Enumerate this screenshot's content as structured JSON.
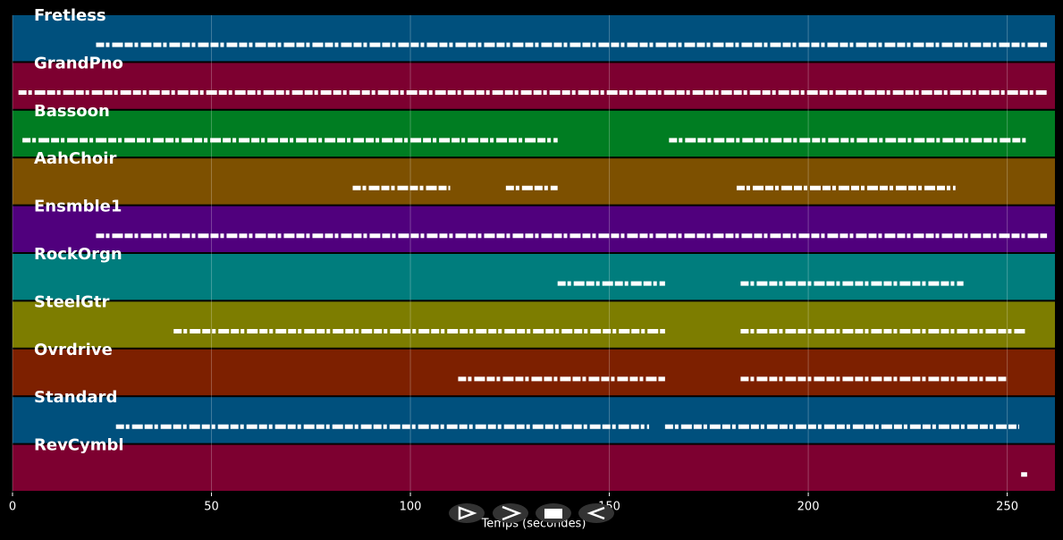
{
  "chart_data": {
    "type": "piano-roll",
    "xlabel": "Temps (secondes)",
    "xlim": [
      0,
      262
    ],
    "xticks": [
      0,
      50,
      100,
      150,
      200,
      250
    ],
    "grid": true,
    "tracks": [
      {
        "name": "Fretless",
        "color": "#00507d",
        "segments": [
          [
            21,
            260
          ]
        ]
      },
      {
        "name": "GrandPno",
        "color": "#7d0030",
        "segments": [
          [
            1.5,
            260
          ]
        ]
      },
      {
        "name": "Bassoon",
        "color": "#007d22",
        "segments": [
          [
            2.5,
            137
          ],
          [
            165,
            255
          ]
        ]
      },
      {
        "name": "AahChoir",
        "color": "#7d5000",
        "segments": [
          [
            85.5,
            110
          ],
          [
            124,
            137
          ],
          [
            182,
            237
          ]
        ]
      },
      {
        "name": "Ensmble1",
        "color": "#50007d",
        "segments": [
          [
            21,
            260
          ]
        ]
      },
      {
        "name": "RockOrgn",
        "color": "#007d7d",
        "segments": [
          [
            137,
            164
          ],
          [
            183,
            239
          ]
        ]
      },
      {
        "name": "SteelGtr",
        "color": "#7d7d00",
        "segments": [
          [
            40.5,
            164
          ],
          [
            183,
            254.5
          ]
        ]
      },
      {
        "name": "Ovrdrive",
        "color": "#7d2000",
        "segments": [
          [
            112,
            164
          ],
          [
            183,
            250
          ]
        ]
      },
      {
        "name": "Standard",
        "color": "#00507d",
        "segments": [
          [
            26,
            160
          ],
          [
            164,
            253
          ]
        ]
      },
      {
        "name": "RevCymbl",
        "color": "#7d0030",
        "segments": [
          [
            253.5,
            255
          ]
        ]
      }
    ]
  }
}
